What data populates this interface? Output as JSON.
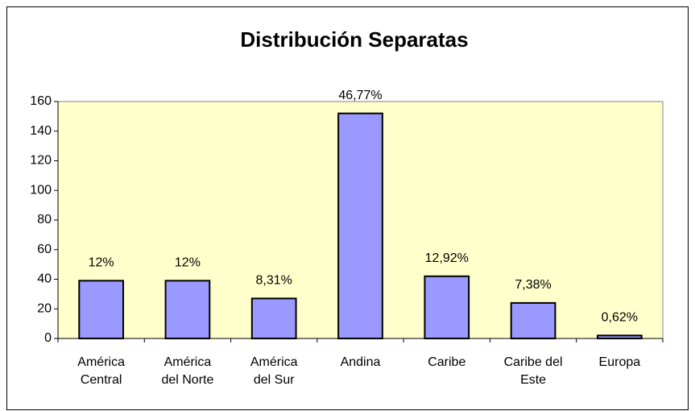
{
  "chart_data": {
    "type": "bar",
    "title": "Distribución Separatas",
    "categories": [
      "América Central",
      "América del Norte",
      "América del Sur",
      "Andina",
      "Caribe",
      "Caribe del Este",
      "Europa"
    ],
    "values": [
      39,
      39,
      27,
      152,
      42,
      24,
      2
    ],
    "value_labels": [
      "12%",
      "12%",
      "8,31%",
      "46,77%",
      "12,92%",
      "7,38%",
      "0,62%"
    ],
    "color": "#9999ff",
    "plot_background": "#ffffcc",
    "ylim": [
      0,
      160
    ],
    "yticks": [
      0,
      20,
      40,
      60,
      80,
      100,
      120,
      140,
      160
    ]
  }
}
